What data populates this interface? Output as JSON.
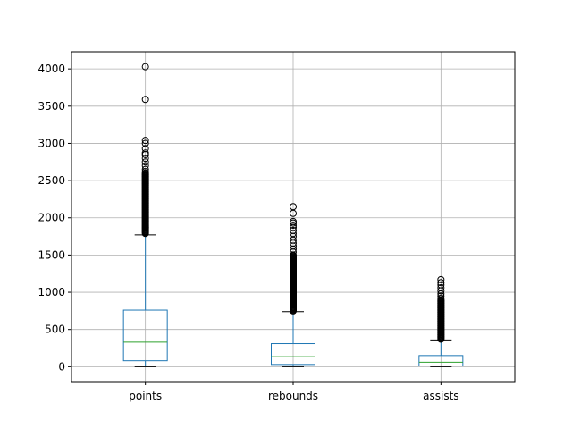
{
  "chart_data": {
    "type": "box",
    "title": "",
    "xlabel": "",
    "ylabel": "",
    "ylim": [
      -200,
      4230
    ],
    "yticks": [
      0,
      500,
      1000,
      1500,
      2000,
      2500,
      3000,
      3500,
      4000
    ],
    "grid": true,
    "colors": {
      "box": "#1f77b4",
      "median": "#2ca02c",
      "whisker": "#1f77b4",
      "flier": "#000000",
      "grid": "#b0b0b0"
    },
    "series": [
      {
        "name": "points",
        "min": 0,
        "q1": 80,
        "median": 330,
        "q3": 760,
        "max": 1770,
        "outlier_range": [
          1790,
          2600
        ],
        "outliers": [
          2620,
          2650,
          2700,
          2750,
          2800,
          2850,
          2870,
          2930,
          3000,
          3040,
          3590,
          4030
        ]
      },
      {
        "name": "rebounds",
        "min": 0,
        "q1": 30,
        "median": 135,
        "q3": 310,
        "max": 740,
        "outlier_range": [
          750,
          1500
        ],
        "outliers": [
          1540,
          1580,
          1620,
          1660,
          1700,
          1750,
          1790,
          1830,
          1870,
          1900,
          1930,
          1950,
          2060,
          2150
        ]
      },
      {
        "name": "assists",
        "min": 0,
        "q1": 10,
        "median": 60,
        "q3": 150,
        "max": 360,
        "outlier_range": [
          370,
          900
        ],
        "outliers": [
          920,
          950,
          980,
          1020,
          1060,
          1100,
          1130,
          1170
        ]
      }
    ]
  }
}
